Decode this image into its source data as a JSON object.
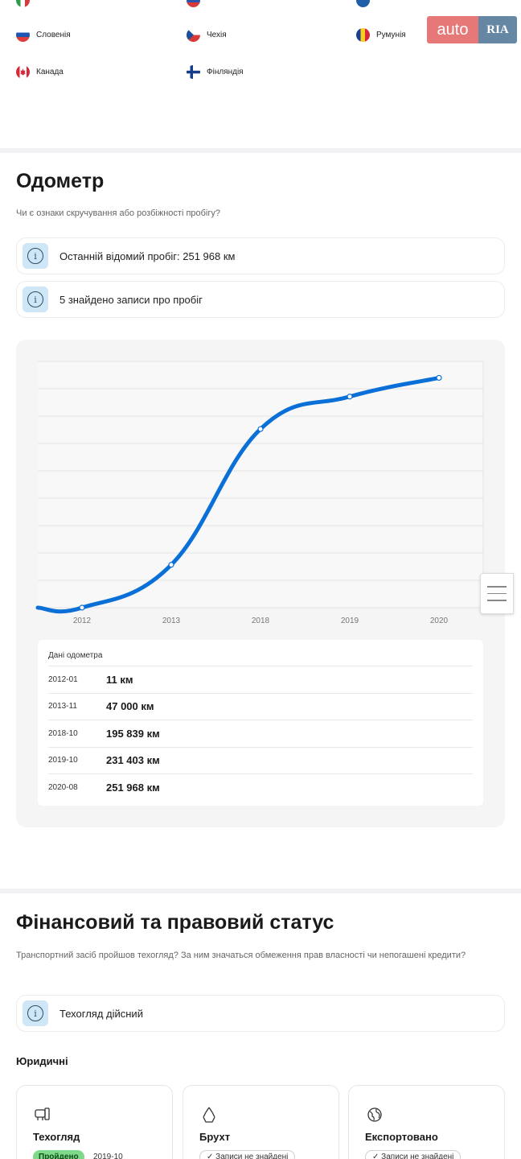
{
  "countries": {
    "partial_top": [
      "Italy",
      "Slovakia",
      "Sweden"
    ],
    "row": [
      {
        "label": "Словенія",
        "flag": "slovenia"
      },
      {
        "label": "Чехія",
        "flag": "czech"
      },
      {
        "label": "Румунія",
        "flag": "romania"
      }
    ],
    "row2": [
      {
        "label": "Канада",
        "flag": "canada"
      },
      {
        "label": "Фінляндія",
        "flag": "finland"
      }
    ]
  },
  "logo": {
    "part1": "auto",
    "part2": "RIA"
  },
  "odometer": {
    "title": "Одометр",
    "subtitle": "Чи є ознаки скручування або розбіжності пробігу?",
    "info1": "Останній відомий пробіг: 251 968 км",
    "info2": "5 знайдено записи про пробіг",
    "table_title": "Дані одометра",
    "rows": [
      {
        "date": "2012-01",
        "value": "11 км"
      },
      {
        "date": "2013-11",
        "value": "47 000 км"
      },
      {
        "date": "2018-10",
        "value": "195 839 км"
      },
      {
        "date": "2019-10",
        "value": "231 403 км"
      },
      {
        "date": "2020-08",
        "value": "251 968 км"
      }
    ]
  },
  "chart_data": {
    "type": "line",
    "categories": [
      "2012",
      "2013",
      "2018",
      "2019",
      "2020"
    ],
    "series": [
      {
        "values": [
          11,
          47000,
          195839,
          231403,
          251968
        ]
      }
    ],
    "ylim": [
      0,
      270000
    ],
    "grid": true,
    "color": "#0a6fd6"
  },
  "finance": {
    "title": "Фінансовий та правовий статус",
    "subtitle": "Транспортний засіб пройшов техогляд? За ним значаться обмеження прав власності чи непогашені кредити?",
    "info": "Техогляд дійсний",
    "legal_label": "Юридичні",
    "cards": [
      {
        "title": "Техогляд",
        "badge": "Пройдено",
        "date": "2019-10",
        "icon": "inspection-icon"
      },
      {
        "title": "Брухт",
        "badge": "Записи не знайдені",
        "icon": "recycle-icon"
      },
      {
        "title": "Експортовано",
        "badge": "Записи не знайдені",
        "icon": "globe-icon"
      }
    ]
  }
}
